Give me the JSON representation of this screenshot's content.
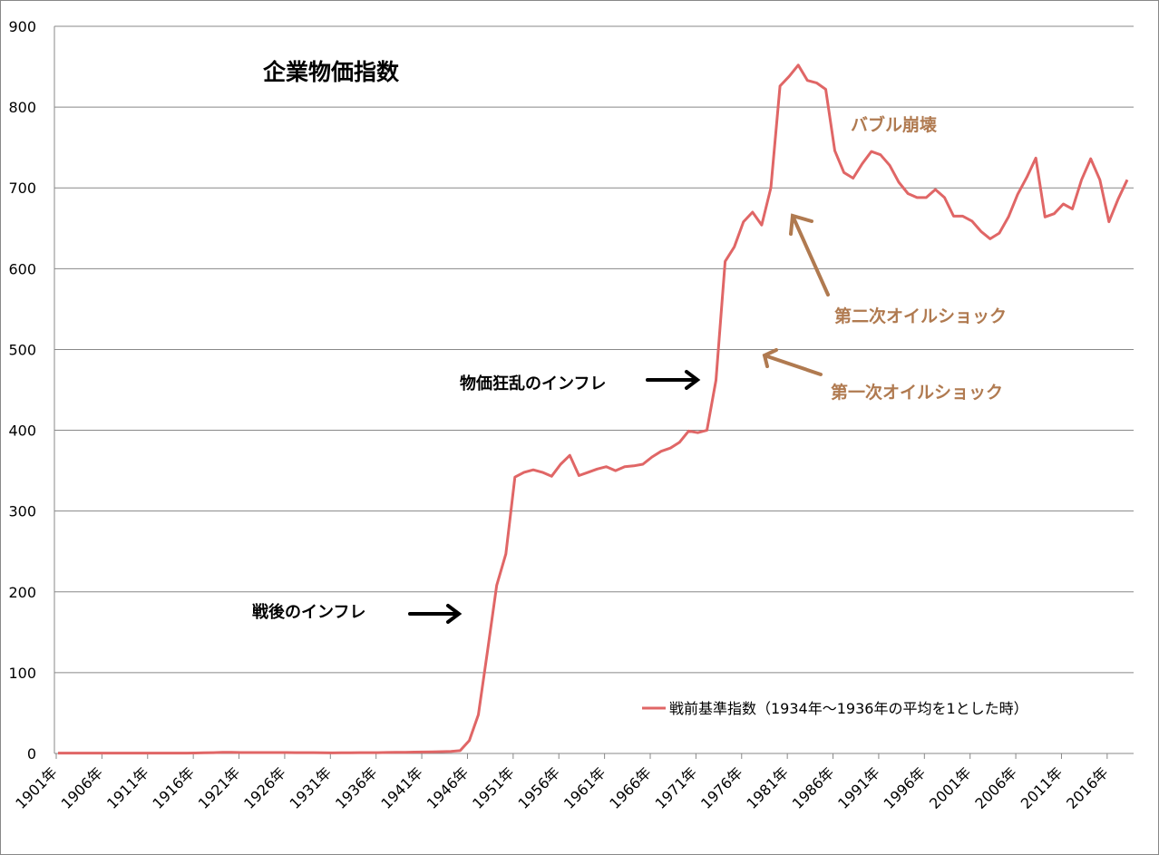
{
  "chart_data": {
    "type": "line",
    "title": "企業物価指数",
    "xlabel": "",
    "ylabel": "",
    "ylim": [
      0,
      900
    ],
    "yticks": [
      "0",
      "100",
      "200",
      "300",
      "400",
      "500",
      "600",
      "700",
      "800",
      "900"
    ],
    "x_start": 1901,
    "x_end": 2018,
    "xtick_labels": [
      "1901年",
      "1906年",
      "1911年",
      "1916年",
      "1921年",
      "1926年",
      "1931年",
      "1936年",
      "1941年",
      "1946年",
      "1951年",
      "1956年",
      "1961年",
      "1966年",
      "1971年",
      "1976年",
      "1981年",
      "1986年",
      "1991年",
      "1996年",
      "2001年",
      "2006年",
      "2011年",
      "2016年"
    ],
    "grid": true,
    "legend_position": "bottom-right",
    "series": [
      {
        "name": "戦前基準指数（1934年～1936年の平均を1とした時）",
        "color": "#E06666",
        "values": [
          0.5,
          0.5,
          0.5,
          0.5,
          0.5,
          0.5,
          0.5,
          0.5,
          0.5,
          0.5,
          0.5,
          0.5,
          0.5,
          0.5,
          0.5,
          0.6,
          0.8,
          1.0,
          1.3,
          1.3,
          1.1,
          1.1,
          1.1,
          1.1,
          1.1,
          1.1,
          1.0,
          1.0,
          1.0,
          0.9,
          0.7,
          0.8,
          0.9,
          1.0,
          1.0,
          1.0,
          1.2,
          1.3,
          1.5,
          1.7,
          1.8,
          2.0,
          2.2,
          2.6,
          3.5,
          16,
          48,
          127,
          208,
          247,
          342,
          348,
          351,
          348,
          343,
          358,
          369,
          344,
          348,
          352,
          355,
          350,
          355,
          356,
          358,
          367,
          374,
          378,
          385,
          399,
          397,
          400,
          462,
          609,
          627,
          658,
          670,
          654,
          700,
          826,
          838,
          852,
          833,
          830,
          822,
          746,
          719,
          712,
          730,
          745,
          741,
          728,
          707,
          693,
          688,
          688,
          698,
          688,
          665,
          665,
          659,
          646,
          637,
          644,
          664,
          692,
          713,
          737,
          664,
          668,
          680,
          674,
          710,
          736,
          710,
          658,
          686,
          710
        ]
      }
    ],
    "annotations": [
      {
        "text": "戦後のインフレ",
        "color": "#000000"
      },
      {
        "text": "物価狂乱のインフレ",
        "color": "#000000"
      },
      {
        "text": "第一次オイルショック",
        "color": "#B07A50"
      },
      {
        "text": "第二次オイルショック",
        "color": "#B07A50"
      },
      {
        "text": "バブル崩壊",
        "color": "#B07A50"
      }
    ]
  }
}
